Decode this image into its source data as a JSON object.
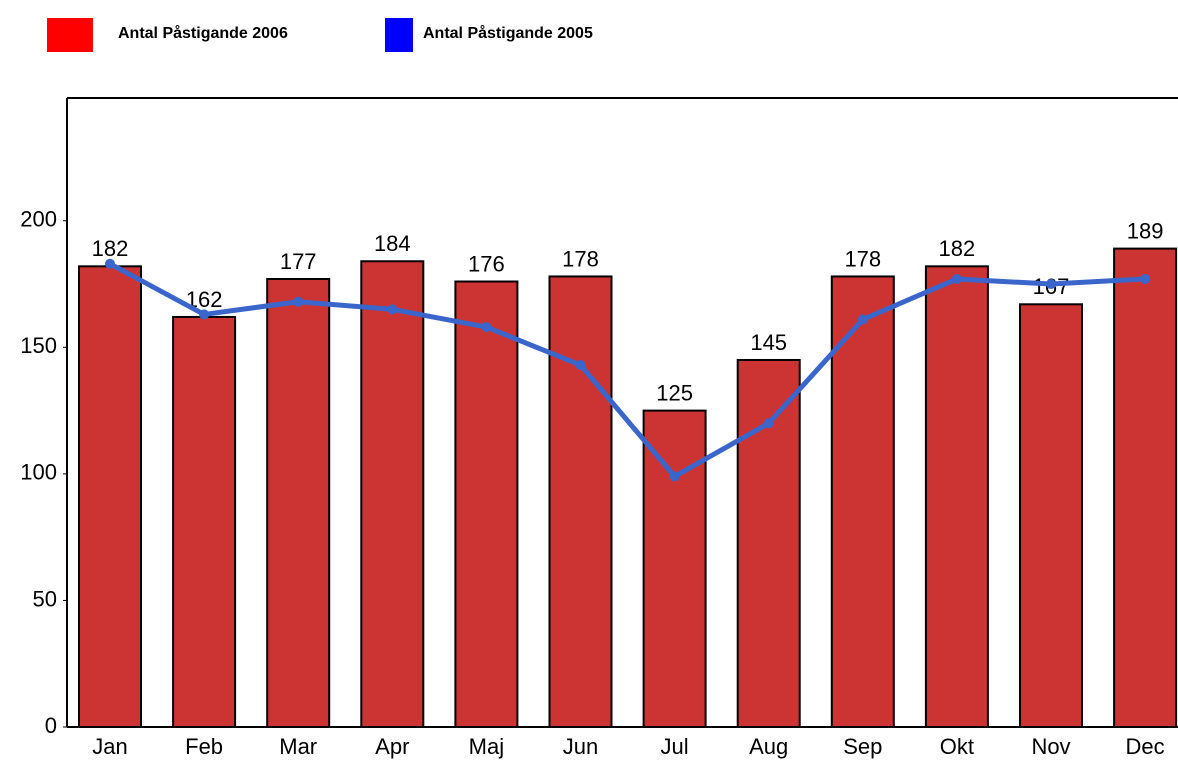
{
  "chart_data": {
    "type": "bar-line",
    "categories": [
      "Jan",
      "Feb",
      "Mar",
      "Apr",
      "Maj",
      "Jun",
      "Jul",
      "Aug",
      "Sep",
      "Okt",
      "Nov",
      "Dec"
    ],
    "series": [
      {
        "name": "Antal Påstigande 2006",
        "type": "bar",
        "color": "#cc3333",
        "legend_color": "#ff0000",
        "values": [
          182,
          162,
          177,
          184,
          176,
          178,
          125,
          145,
          178,
          182,
          167,
          189
        ],
        "data_labels": true
      },
      {
        "name": "Antal Påstigande 2005",
        "type": "line",
        "color": "#3a66cc",
        "legend_color": "#0000ff",
        "values": [
          183,
          163,
          168,
          165,
          158,
          143,
          99,
          120,
          161,
          177,
          175,
          177
        ],
        "data_labels": false
      }
    ],
    "ylim": [
      0,
      248.5
    ],
    "yticks": [
      0,
      50,
      100,
      150,
      200
    ],
    "grid": false
  }
}
